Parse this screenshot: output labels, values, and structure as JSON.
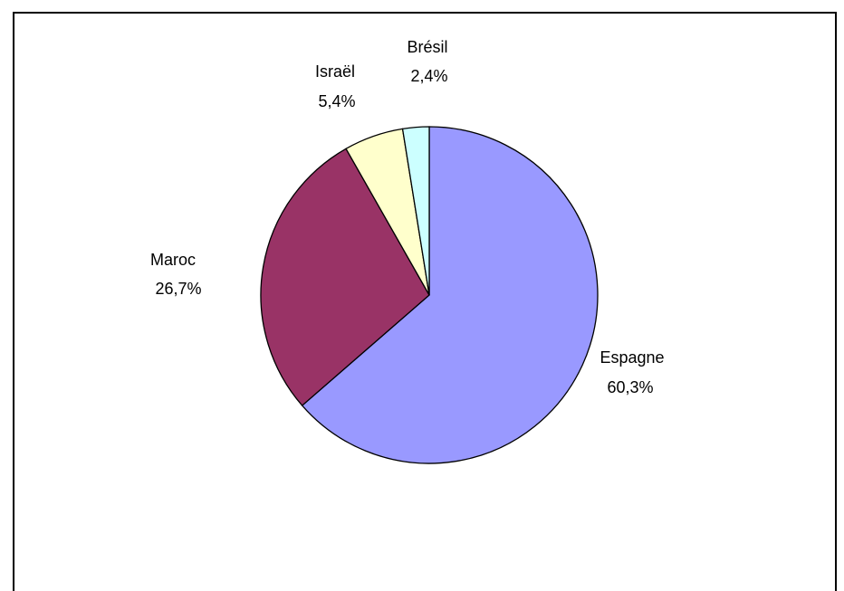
{
  "chart_data": {
    "type": "pie",
    "title": "",
    "start_angle_deg": 0,
    "direction": "clockwise",
    "slices": [
      {
        "label": "Espagne",
        "value": 60.3,
        "value_label": "60,3%",
        "color": "#9999FF"
      },
      {
        "label": "Maroc",
        "value": 26.7,
        "value_label": "26,7%",
        "color": "#993366"
      },
      {
        "label": "Israël",
        "value": 5.4,
        "value_label": "5,4%",
        "color": "#FFFFCC"
      },
      {
        "label": "Brésil",
        "value": 2.4,
        "value_label": "2,4%",
        "color": "#CCFFFF"
      }
    ]
  }
}
